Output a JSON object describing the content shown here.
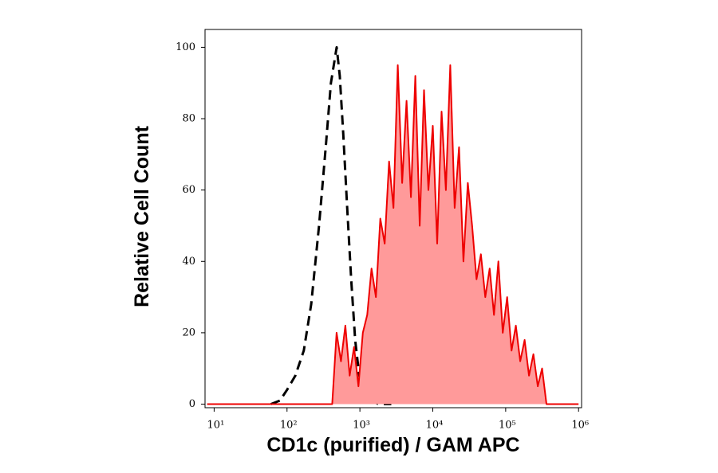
{
  "chart_data": {
    "type": "histogram-overlay",
    "xlabel": "CD1c (purified) / GAM APC",
    "ylabel": "Relative Cell Count",
    "xscale": "log",
    "xlim": [
      7.5,
      1100000
    ],
    "xticks": [
      {
        "value": 10,
        "label": "10¹"
      },
      {
        "value": 100,
        "label": "10²"
      },
      {
        "value": 1000,
        "label": "10³"
      },
      {
        "value": 10000,
        "label": "10⁴"
      },
      {
        "value": 100000,
        "label": "10⁵"
      },
      {
        "value": 1000000,
        "label": "10⁶"
      }
    ],
    "ylim": [
      -1,
      105
    ],
    "yticks": [
      0,
      20,
      40,
      60,
      80,
      100
    ],
    "series": [
      {
        "color": "#000000",
        "style": "dashed",
        "x": [
          60,
          80,
          100,
          130,
          170,
          215,
          275,
          340,
          400,
          480,
          530,
          590,
          670,
          760,
          860,
          980,
          1200,
          1400,
          1800,
          2700
        ],
        "values": [
          0,
          1,
          4,
          8,
          15,
          28,
          50,
          72,
          90,
          100,
          92,
          76,
          55,
          35,
          18,
          8,
          3,
          1,
          0,
          0
        ]
      },
      {
        "color": "#ee0000",
        "fill": "#ff9a9a",
        "style": "solid",
        "x": [
          8,
          417,
          479,
          550,
          631,
          724,
          832,
          955,
          1096,
          1259,
          1445,
          1660,
          1905,
          2188,
          2512,
          2884,
          3311,
          3802,
          4365,
          5012,
          5754,
          6607,
          7586,
          8710,
          10000,
          11482,
          13183,
          15136,
          17378,
          19953,
          22909,
          26303,
          30200,
          34674,
          39811,
          45709,
          52481,
          60256,
          69183,
          79433,
          91201,
          104713,
          120226,
          138038,
          158489,
          181970,
          208930,
          239883,
          275423,
          316228,
          363078,
          1000000
        ],
        "values": [
          0,
          0,
          20,
          12,
          22,
          8,
          16,
          5,
          20,
          25,
          38,
          30,
          52,
          45,
          68,
          55,
          95,
          62,
          85,
          58,
          92,
          50,
          88,
          60,
          78,
          45,
          82,
          60,
          95,
          55,
          72,
          40,
          62,
          50,
          35,
          42,
          30,
          38,
          25,
          40,
          20,
          30,
          15,
          22,
          12,
          18,
          8,
          14,
          5,
          10,
          0,
          0
        ]
      }
    ]
  }
}
